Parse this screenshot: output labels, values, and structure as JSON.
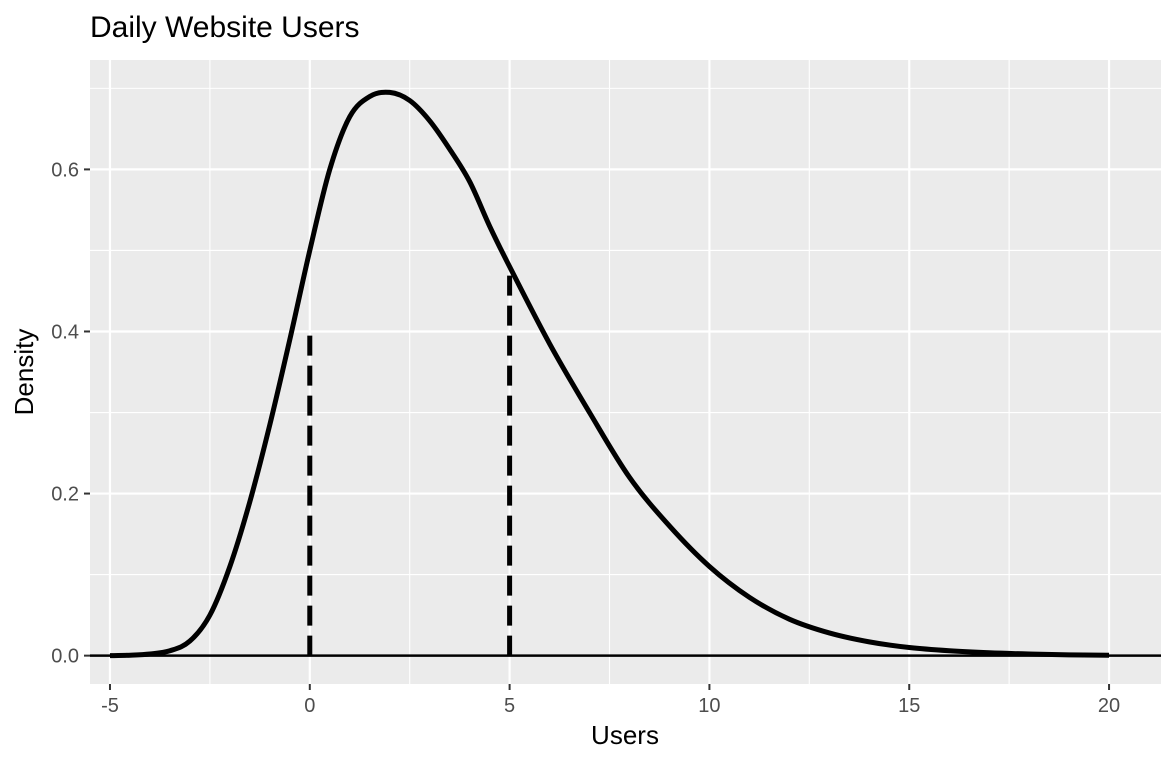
{
  "chart_data": {
    "type": "line",
    "title": "Daily Website Users",
    "xlabel": "Users",
    "ylabel": "Density",
    "xlim": [
      -5.5,
      21.3
    ],
    "ylim": [
      -0.035,
      0.735
    ],
    "x_ticks": [
      -5,
      0,
      5,
      10,
      15,
      20
    ],
    "x_tick_labels": [
      "-5",
      "0",
      "5",
      "10",
      "15",
      "20"
    ],
    "y_ticks": [
      0.0,
      0.2,
      0.4,
      0.6
    ],
    "y_tick_labels": [
      "0.0",
      "0.2",
      "0.4",
      "0.6"
    ],
    "grid": true,
    "panel_background": "#EBEBEB",
    "grid_color": "#FFFFFF",
    "line_color": "#000000",
    "series": [
      {
        "x": [
          -5,
          -4.5,
          -4,
          -3.5,
          -3,
          -2.5,
          -2,
          -1.5,
          -1,
          -0.5,
          0,
          0.5,
          1,
          1.5,
          2,
          2.5,
          3,
          3.5,
          4,
          4.5,
          5,
          6,
          7,
          8,
          9,
          10,
          11,
          12,
          13,
          14,
          15,
          16,
          17,
          18,
          19,
          20
        ],
        "values": [
          0.0,
          0.0005,
          0.002,
          0.006,
          0.018,
          0.05,
          0.11,
          0.19,
          0.285,
          0.39,
          0.5,
          0.6,
          0.665,
          0.69,
          0.695,
          0.685,
          0.66,
          0.625,
          0.585,
          0.53,
          0.48,
          0.385,
          0.3,
          0.22,
          0.16,
          0.11,
          0.072,
          0.045,
          0.028,
          0.017,
          0.01,
          0.006,
          0.0035,
          0.002,
          0.001,
          0.0005
        ]
      }
    ],
    "reference_lines": [
      {
        "x": 0,
        "y_top": 0.4,
        "style": "dashed"
      },
      {
        "x": 5,
        "y_top": 0.48,
        "style": "dashed"
      }
    ],
    "baseline": {
      "y": 0,
      "style": "solid"
    }
  }
}
